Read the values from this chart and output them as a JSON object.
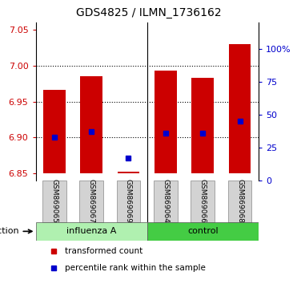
{
  "title": "GDS4825 / ILMN_1736162",
  "samples": [
    "GSM869065",
    "GSM869067",
    "GSM869069",
    "GSM869064",
    "GSM869066",
    "GSM869068"
  ],
  "groups": [
    "influenza A",
    "influenza A",
    "influenza A",
    "control",
    "control",
    "control"
  ],
  "group_labels": [
    "influenza A",
    "control"
  ],
  "group_colors": [
    "#90ee90",
    "#00cc00"
  ],
  "bar_bottoms": [
    6.85,
    6.85,
    6.85,
    6.85,
    6.85,
    6.85
  ],
  "bar_tops": [
    6.967,
    6.985,
    6.852,
    6.993,
    6.983,
    7.03
  ],
  "percentile_values": [
    6.9,
    6.908,
    6.871,
    6.906,
    6.906,
    6.923
  ],
  "percentile_pct": [
    25,
    27,
    3,
    26,
    27,
    33
  ],
  "ylim_left": [
    6.84,
    7.06
  ],
  "yticks_left": [
    6.85,
    6.9,
    6.95,
    7.0,
    7.05
  ],
  "ylim_right": [
    0,
    120
  ],
  "yticks_right": [
    0,
    25,
    50,
    75,
    100
  ],
  "ytick_labels_right": [
    "0",
    "25",
    "50",
    "75",
    "100%"
  ],
  "bar_color": "#cc0000",
  "blue_color": "#0000cc",
  "bar_width": 0.6,
  "grid_color": "#000000",
  "label_color_left": "#cc0000",
  "label_color_right": "#0000cc",
  "infection_label": "infection",
  "legend_items": [
    "transformed count",
    "percentile rank within the sample"
  ],
  "background_plot": "#ffffff",
  "background_xticklabels": "#d3d3d3",
  "dotted_grid_yticks": [
    6.9,
    6.95,
    7.0
  ]
}
